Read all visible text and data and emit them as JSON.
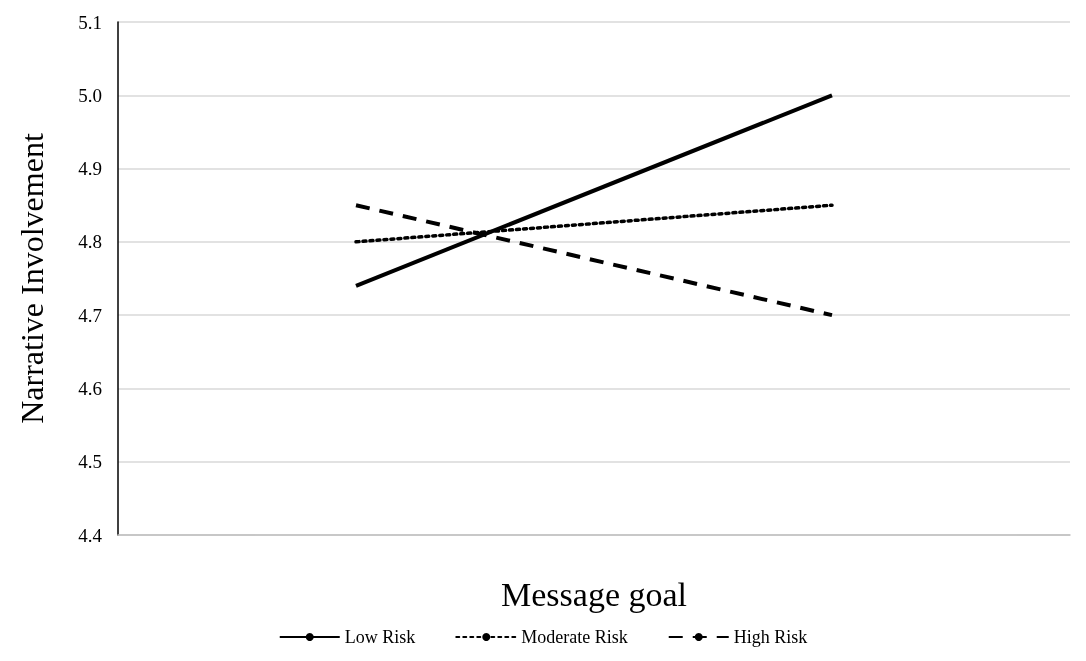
{
  "chart_data": {
    "type": "line",
    "xlabel": "Message goal",
    "ylabel": "Narrative Involvement",
    "categories": [
      null,
      null
    ],
    "series": [
      {
        "name": "Low Risk",
        "color": "#000000",
        "line_style": "solid",
        "values": [
          4.74,
          5.0
        ]
      },
      {
        "name": "Moderate Risk",
        "color": "#000000",
        "line_style": "dotted",
        "values": [
          4.8,
          4.85
        ]
      },
      {
        "name": "High Risk",
        "color": "#000000",
        "line_style": "dashed",
        "values": [
          4.85,
          4.7
        ]
      }
    ],
    "ylim": [
      4.4,
      5.1
    ],
    "yticks": [
      {
        "value": 4.4,
        "label": "4.4"
      },
      {
        "value": 4.5,
        "label": "4.5"
      },
      {
        "value": 4.6,
        "label": "4.6"
      },
      {
        "value": 4.7,
        "label": "4.7"
      },
      {
        "value": 4.8,
        "label": "4.8"
      },
      {
        "value": 4.9,
        "label": "4.9"
      },
      {
        "value": 5.0,
        "label": "5.0"
      },
      {
        "value": 5.1,
        "label": "5.1"
      }
    ],
    "grid": "y",
    "legend": "bottom",
    "marker": "none"
  }
}
